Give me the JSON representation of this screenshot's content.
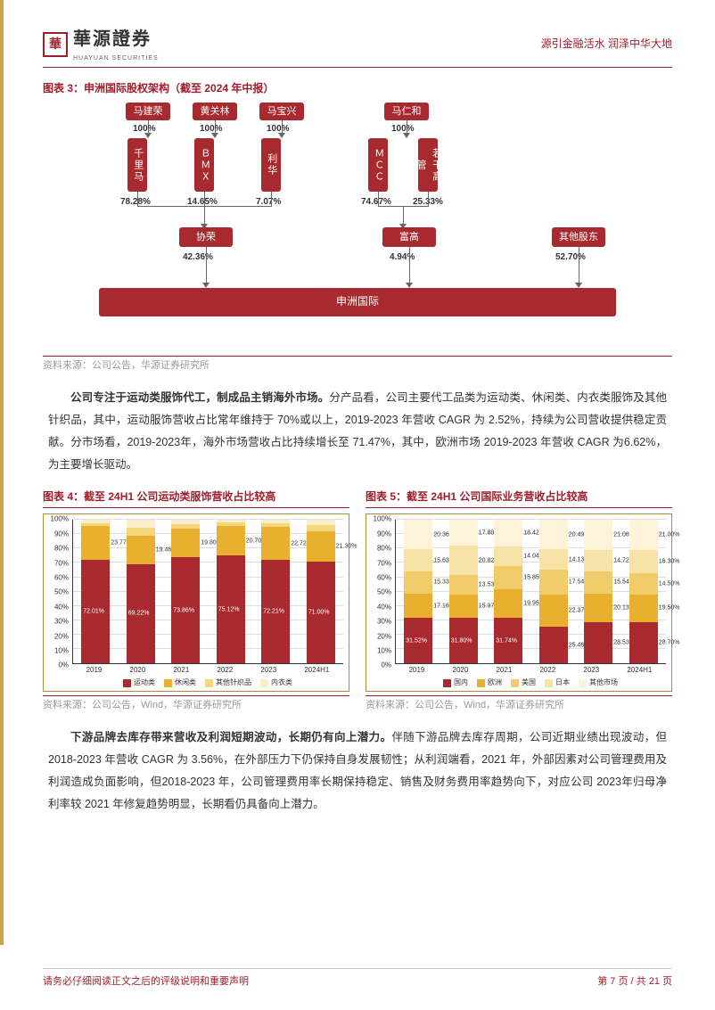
{
  "header": {
    "logo_main": "華源證券",
    "logo_sub": "HUAYUAN SECURITIES",
    "tagline": "源引金融活水 润泽中华大地"
  },
  "org_chart": {
    "title": "图表 3：申洲国际股权架构（截至 2024 年中报）",
    "source": "资料来源：公司公告，华源证券研究所",
    "top_nodes": [
      {
        "label": "马建荣",
        "x": 90
      },
      {
        "label": "黄关林",
        "x": 165
      },
      {
        "label": "马宝兴",
        "x": 240
      },
      {
        "label": "马仁和",
        "x": 380
      }
    ],
    "pct_100": "100%",
    "mid_nodes": [
      {
        "label": "千里马",
        "x": 92
      },
      {
        "label": "ＢＭＸ",
        "x": 167
      },
      {
        "label": "利华",
        "x": 242
      },
      {
        "label": "ＭＣＣ",
        "x": 362
      },
      {
        "label": "若干高管",
        "x": 418
      }
    ],
    "mid_pcts": [
      {
        "v": "78.28%",
        "x": 84
      },
      {
        "v": "14.65%",
        "x": 159
      },
      {
        "v": "7.07%",
        "x": 236
      },
      {
        "v": "74.67%",
        "x": 354
      },
      {
        "v": "25.33%",
        "x": 412
      }
    ],
    "lower_nodes": [
      {
        "label": "协荣",
        "x": 150
      },
      {
        "label": "富高",
        "x": 378
      },
      {
        "label": "其他股东",
        "x": 568
      }
    ],
    "lower_pcts": [
      {
        "v": "42.36%",
        "x": 154
      },
      {
        "v": "4.94%",
        "x": 386
      },
      {
        "v": "52.70%",
        "x": 572
      }
    ],
    "final": "申洲国际"
  },
  "para1": {
    "bold": "公司专注于运动类服饰代工，制成品主销海外市场。",
    "text": "分产品看，公司主要代工品类为运动类、休闲类、内衣类服饰及其他针织品，其中，运动服饰营收占比常年维持于 70%或以上，2019-2023 年营收 CAGR 为 2.52%，持续为公司营收提供稳定贡献。分市场看，2019-2023年，海外市场营收占比持续增长至 71.47%，其中，欧洲市场 2019-2023 年营收 CAGR 为6.62%，为主要增长驱动。"
  },
  "chart4": {
    "title": "图表 4：截至 24H1 公司运动类服饰营收占比较高",
    "source": "资料来源：公司公告，Wind，华源证券研究所",
    "categories": [
      "2019",
      "2020",
      "2021",
      "2022",
      "2023",
      "2024H1"
    ],
    "yticks": [
      "0%",
      "10%",
      "20%",
      "30%",
      "40%",
      "50%",
      "60%",
      "70%",
      "80%",
      "90%",
      "100%"
    ],
    "colors": [
      "#a82a2e",
      "#e9b030",
      "#f2d77c",
      "#fceec8"
    ],
    "legend": [
      "运动类",
      "休闲类",
      "其他针织品",
      "内衣类"
    ],
    "series": [
      {
        "vals": [
          72.01,
          23.77,
          2.0,
          2.22
        ],
        "labels": [
          "72.01%",
          "23.77%"
        ]
      },
      {
        "vals": [
          69.22,
          19.46,
          6.0,
          5.32
        ],
        "labels": [
          "69.22%",
          "19.46%"
        ]
      },
      {
        "vals": [
          73.86,
          19.8,
          3.5,
          2.84
        ],
        "labels": [
          "73.86%",
          "19.80%"
        ]
      },
      {
        "vals": [
          75.12,
          20.7,
          2.3,
          1.88
        ],
        "labels": [
          "75.12%",
          "20.70%"
        ]
      },
      {
        "vals": [
          72.21,
          22.72,
          2.7,
          2.37
        ],
        "labels": [
          "72.21%",
          "22.72%"
        ]
      },
      {
        "vals": [
          71.0,
          21.3,
          4.0,
          3.7
        ],
        "labels": [
          "71.00%",
          "21.30%"
        ]
      }
    ]
  },
  "chart5": {
    "title": "图表 5：截至 24H1 公司国际业务营收占比较高",
    "source": "资料来源：公司公告，Wind，华源证券研究所",
    "categories": [
      "2019",
      "2020",
      "2021",
      "2022",
      "2023",
      "2024H1"
    ],
    "yticks": [
      "0%",
      "10%",
      "20%",
      "30%",
      "40%",
      "50%",
      "60%",
      "70%",
      "80%",
      "90%",
      "100%"
    ],
    "colors": [
      "#a82a2e",
      "#e9b030",
      "#f0cd6a",
      "#f7e3a8",
      "#fcf3d8"
    ],
    "legend": [
      "国内",
      "欧洲",
      "美国",
      "日本",
      "其他市场"
    ],
    "series": [
      {
        "vals": [
          31.52,
          17.16,
          15.33,
          15.63,
          20.36
        ],
        "labels": [
          "31.52%",
          "17.16%",
          "15.33%",
          "15.63%",
          "20.36%"
        ]
      },
      {
        "vals": [
          31.8,
          15.97,
          13.53,
          20.82,
          17.88
        ],
        "labels": [
          "31.80%",
          "15.97%",
          "13.53%",
          "20.82%",
          "17.88%"
        ]
      },
      {
        "vals": [
          31.74,
          19.95,
          15.85,
          14.04,
          18.42
        ],
        "labels": [
          "31.74%",
          "19.95%",
          "15.85%",
          "14.04%",
          "18.42%"
        ]
      },
      {
        "vals": [
          25.46,
          22.37,
          17.54,
          14.13,
          20.49
        ],
        "labels": [
          "25.46%",
          "22.37%",
          "17.54%",
          "14.13%",
          "20.49%"
        ]
      },
      {
        "vals": [
          28.53,
          20.13,
          15.54,
          14.72,
          21.08
        ],
        "labels": [
          "28.53%",
          "20.13%",
          "15.54%",
          "14.72%",
          "21.08%"
        ]
      },
      {
        "vals": [
          28.7,
          19.5,
          14.5,
          16.3,
          21.0
        ],
        "labels": [
          "28.70%",
          "19.50%",
          "14.50%",
          "16.30%",
          "21.00%"
        ]
      }
    ]
  },
  "para2": {
    "bold": "下游品牌去库存带来营收及利润短期波动，长期仍有向上潜力。",
    "text": "伴随下游品牌去库存周期，公司近期业绩出现波动，但 2018-2023 年营收 CAGR 为 3.56%，在外部压力下仍保持自身发展韧性；从利润端看，2021 年，外部因素对公司管理费用及利润造成负面影响，但2018-2023 年，公司管理费用率长期保持稳定、销售及财务费用率趋势向下，对应公司 2023年归母净利率较 2021 年修复趋势明显，长期看仍具备向上潜力。"
  },
  "footer": {
    "disclaimer": "请务必仔细阅读正文之后的评级说明和重要声明",
    "page": "第 7 页 / 共 21 页"
  }
}
